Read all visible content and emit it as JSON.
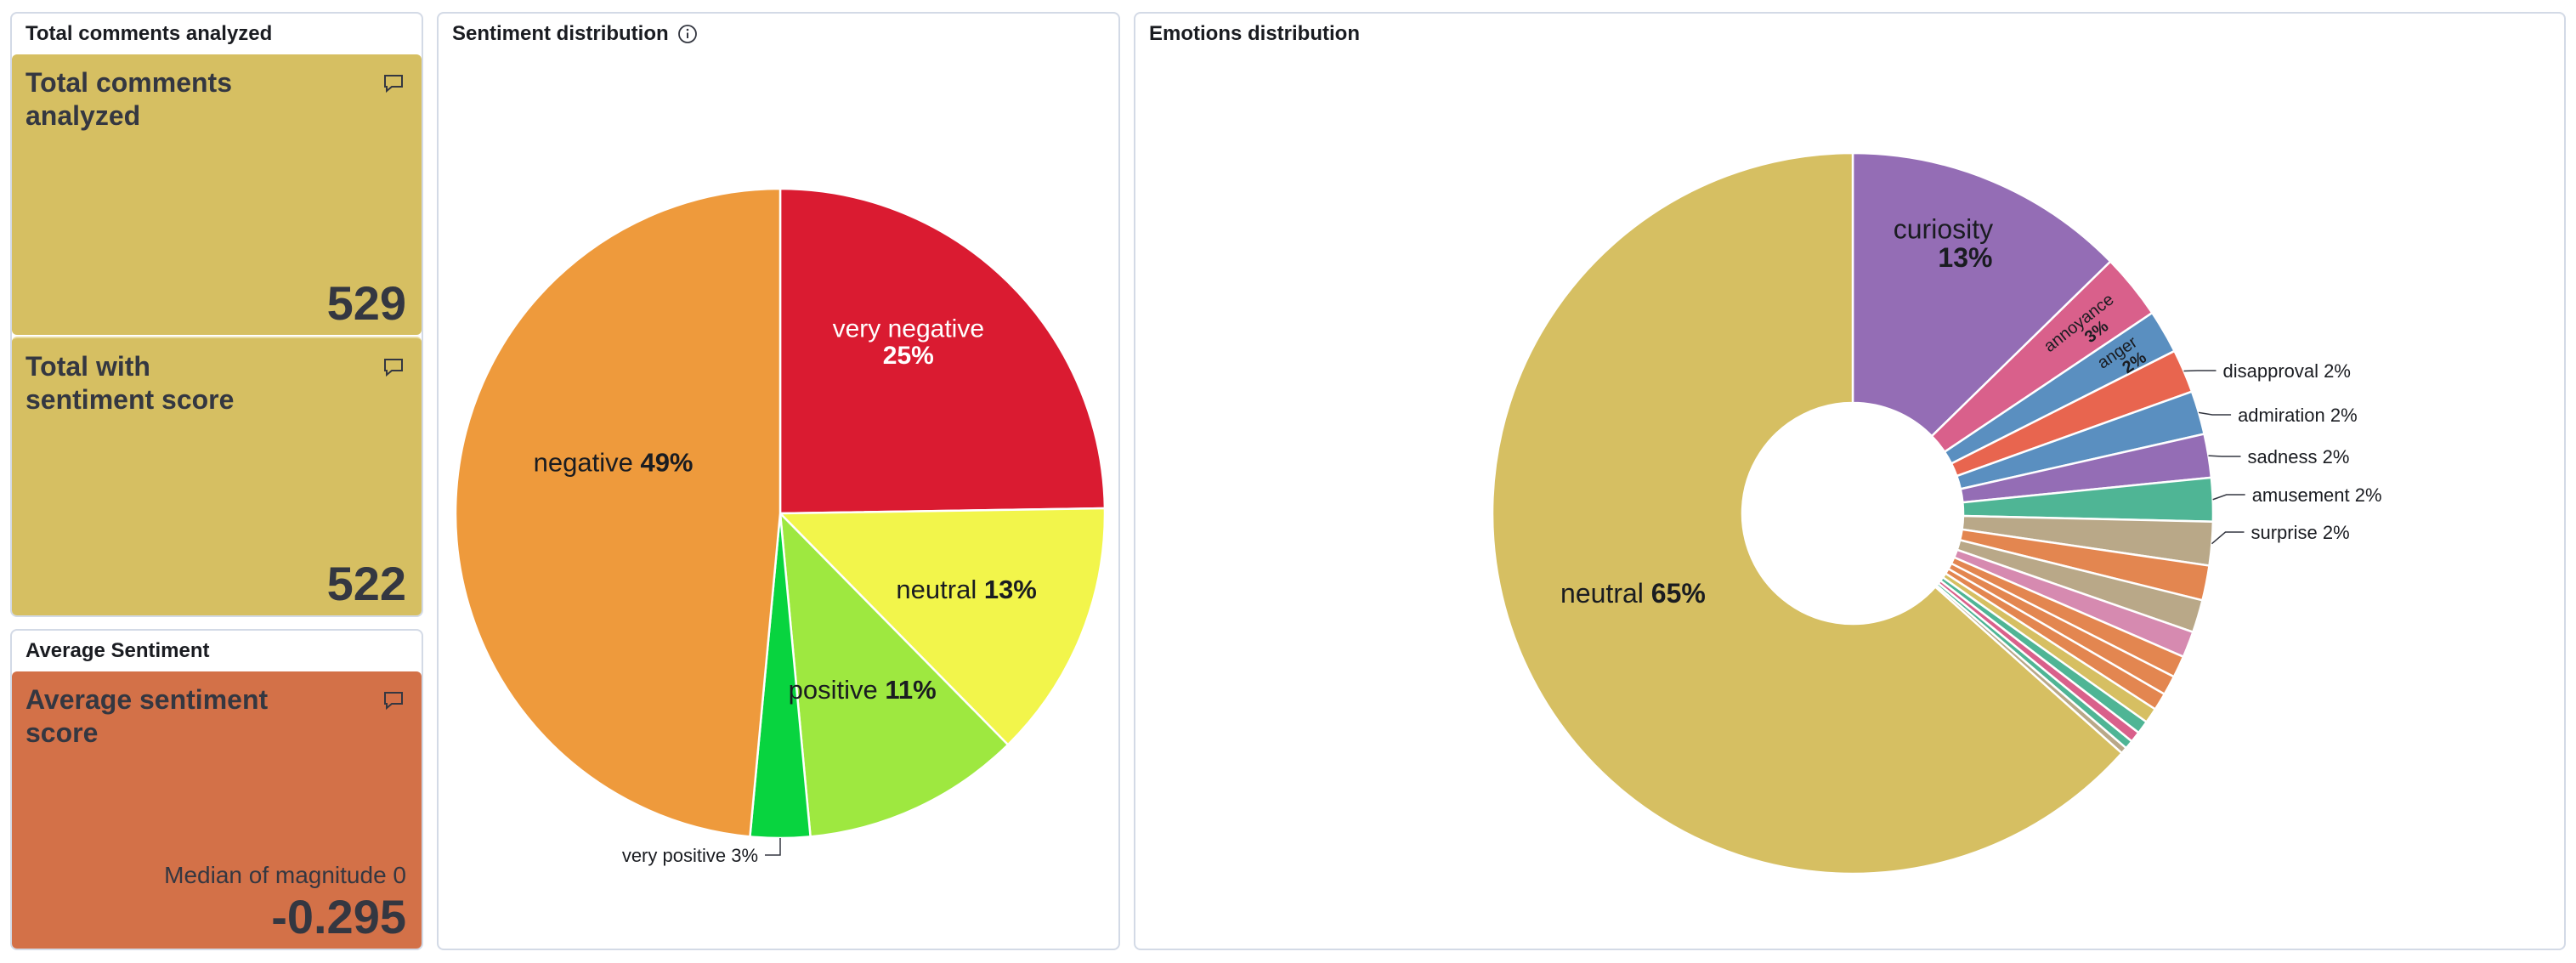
{
  "metrics_panel": {
    "title": "Total comments analyzed",
    "cards": [
      {
        "title": "Total comments analyzed",
        "value": "529",
        "color": "#d6bf62"
      },
      {
        "title": "Total with sentiment score",
        "value": "522",
        "color": "#d6bf62"
      }
    ]
  },
  "avg_panel": {
    "title": "Average Sentiment",
    "card": {
      "title": "Average sentiment score",
      "extra": "Median of magnitude 0",
      "value": "-0.295",
      "color": "#d37148"
    }
  },
  "icons": {
    "comment": "comment-icon",
    "info": "info-icon"
  },
  "chart_data": [
    {
      "type": "pie",
      "title": "Sentiment distribution",
      "slices": [
        {
          "label": "very negative",
          "pct": "25%",
          "value": 25,
          "color": "#da1b31"
        },
        {
          "label": "neutral",
          "pct": "13%",
          "value": 13,
          "color": "#f2f54b"
        },
        {
          "label": "positive",
          "pct": "11%",
          "value": 11,
          "color": "#9ee840"
        },
        {
          "label": "very positive",
          "pct": "3%",
          "value": 3,
          "color": "#08d43f"
        },
        {
          "label": "negative",
          "pct": "49%",
          "value": 49,
          "color": "#ee9a3c"
        }
      ]
    },
    {
      "type": "donut",
      "title": "Emotions distribution",
      "slices": [
        {
          "label": "curiosity",
          "pct": "13%",
          "value": 13,
          "color": "#946db5"
        },
        {
          "label": "annoyance",
          "pct": "3%",
          "value": 3,
          "color": "#d9608b"
        },
        {
          "label": "anger",
          "pct": "2%",
          "value": 2,
          "color": "#5a8fc0"
        },
        {
          "label": "disapproval",
          "pct": "2%",
          "value": 2,
          "color": "#e8654f"
        },
        {
          "label": "admiration",
          "pct": "2%",
          "value": 2,
          "color": "#5a8fc0"
        },
        {
          "label": "sadness",
          "pct": "2%",
          "value": 2,
          "color": "#946db5"
        },
        {
          "label": "amusement",
          "pct": "2%",
          "value": 2,
          "color": "#4fb595"
        },
        {
          "label": "surprise",
          "pct": "2%",
          "value": 2,
          "color": "#b9a888"
        },
        {
          "label": "",
          "pct": "",
          "value": 1.6,
          "color": "#e38650"
        },
        {
          "label": "",
          "pct": "",
          "value": 1.5,
          "color": "#b9a888"
        },
        {
          "label": "",
          "pct": "",
          "value": 1.2,
          "color": "#d68ab0"
        },
        {
          "label": "",
          "pct": "",
          "value": 1.0,
          "color": "#e38650"
        },
        {
          "label": "",
          "pct": "",
          "value": 0.9,
          "color": "#e38650"
        },
        {
          "label": "",
          "pct": "",
          "value": 0.8,
          "color": "#e38650"
        },
        {
          "label": "",
          "pct": "",
          "value": 0.7,
          "color": "#d6bf62"
        },
        {
          "label": "",
          "pct": "",
          "value": 0.6,
          "color": "#4fb595"
        },
        {
          "label": "",
          "pct": "",
          "value": 0.5,
          "color": "#d9608b"
        },
        {
          "label": "",
          "pct": "",
          "value": 0.4,
          "color": "#4fb595"
        },
        {
          "label": "",
          "pct": "",
          "value": 0.3,
          "color": "#b9a888"
        },
        {
          "label": "neutral",
          "pct": "65%",
          "value": 65,
          "color": "#d6bf62"
        }
      ]
    }
  ]
}
